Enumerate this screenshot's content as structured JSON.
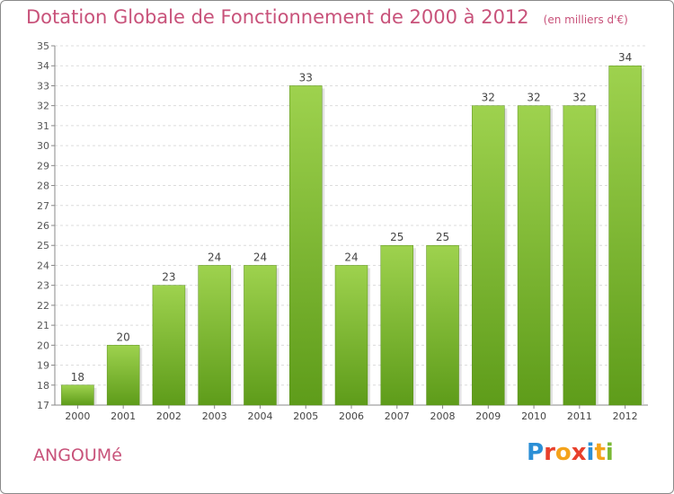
{
  "header": {
    "title": "Dotation Globale de Fonctionnement de 2000 à 2012",
    "subtitle": "(en milliers d'€)"
  },
  "footer": {
    "town": "ANGOUMé",
    "logo_text": "Proxiti"
  },
  "colors": {
    "title": "#c8527a",
    "bar_top": "#9ed24e",
    "bar_bottom": "#5e9c1a",
    "logo_letters": [
      "#2b8fd6",
      "#e8402c",
      "#f4a31b",
      "#e8402c",
      "#2b8fd6",
      "#f4a31b",
      "#7ab834"
    ]
  },
  "chart_data": {
    "type": "bar",
    "title": "Dotation Globale de Fonctionnement de 2000 à 2012",
    "subtitle": "(en milliers d'€)",
    "xlabel": "",
    "ylabel": "",
    "categories": [
      "2000",
      "2001",
      "2002",
      "2003",
      "2004",
      "2005",
      "2006",
      "2007",
      "2008",
      "2009",
      "2010",
      "2011",
      "2012"
    ],
    "values": [
      18,
      20,
      23,
      24,
      24,
      33,
      24,
      25,
      25,
      32,
      32,
      32,
      34
    ],
    "ylim": [
      17,
      35
    ],
    "yticks": [
      17,
      18,
      19,
      20,
      21,
      22,
      23,
      24,
      25,
      26,
      27,
      28,
      29,
      30,
      31,
      32,
      33,
      34,
      35
    ],
    "grid": true,
    "legend": "none"
  }
}
